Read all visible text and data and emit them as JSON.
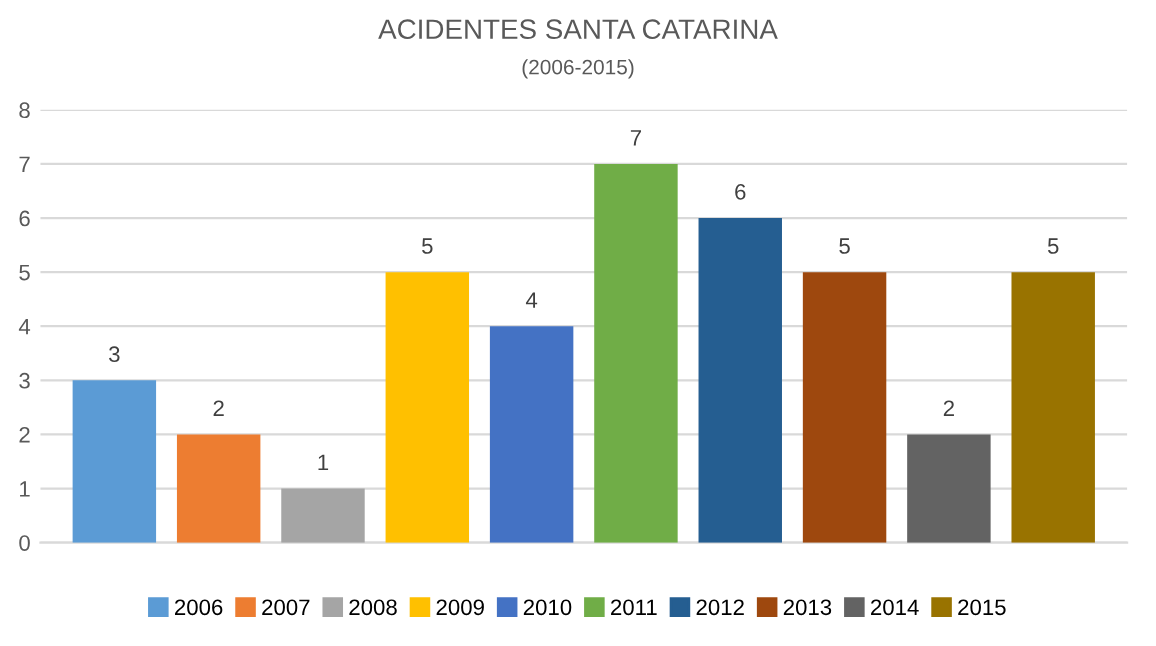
{
  "chart_data": {
    "type": "bar",
    "title": "ACIDENTES SANTA CATARINA",
    "subtitle": "(2006-2015)",
    "categories": [
      null
    ],
    "series": [
      {
        "name": "2006",
        "color": "#5b9bd5",
        "values": [
          3
        ]
      },
      {
        "name": "2007",
        "color": "#ed7d31",
        "values": [
          2
        ]
      },
      {
        "name": "2008",
        "color": "#a5a5a5",
        "values": [
          1
        ]
      },
      {
        "name": "2009",
        "color": "#ffc000",
        "values": [
          5
        ]
      },
      {
        "name": "2010",
        "color": "#4472c4",
        "values": [
          4
        ]
      },
      {
        "name": "2011",
        "color": "#70ad47",
        "values": [
          7
        ]
      },
      {
        "name": "2012",
        "color": "#255e91",
        "values": [
          6
        ]
      },
      {
        "name": "2013",
        "color": "#9e480e",
        "values": [
          5
        ]
      },
      {
        "name": "2014",
        "color": "#636363",
        "values": [
          2
        ]
      },
      {
        "name": "2015",
        "color": "#997300",
        "values": [
          5
        ]
      }
    ],
    "ylim": [
      0,
      8
    ],
    "yticks": [
      0,
      1,
      2,
      3,
      4,
      5,
      6,
      7,
      8
    ],
    "grid": "y",
    "legend": "bottom",
    "data_labels": true
  }
}
